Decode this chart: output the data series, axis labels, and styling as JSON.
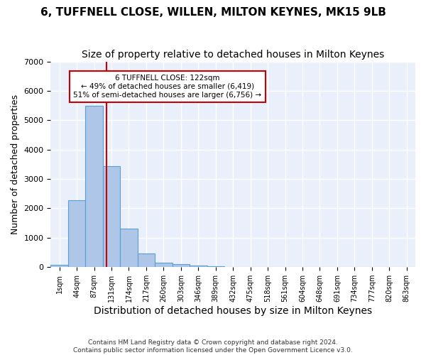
{
  "title": "6, TUFFNELL CLOSE, WILLEN, MILTON KEYNES, MK15 9LB",
  "subtitle": "Size of property relative to detached houses in Milton Keynes",
  "xlabel": "Distribution of detached houses by size in Milton Keynes",
  "ylabel": "Number of detached properties",
  "bin_labels": [
    "1sqm",
    "44sqm",
    "87sqm",
    "131sqm",
    "174sqm",
    "217sqm",
    "260sqm",
    "303sqm",
    "346sqm",
    "389sqm",
    "432sqm",
    "475sqm",
    "518sqm",
    "561sqm",
    "604sqm",
    "648sqm",
    "691sqm",
    "734sqm",
    "777sqm",
    "820sqm",
    "863sqm"
  ],
  "bar_values": [
    80,
    2280,
    5480,
    3440,
    1310,
    460,
    160,
    100,
    60,
    30,
    0,
    0,
    0,
    0,
    0,
    0,
    0,
    0,
    0,
    0,
    0
  ],
  "bar_color": "#aec6e8",
  "bar_edge_color": "#5a9fd4",
  "vline_x": 2.72,
  "vline_color": "#cc0000",
  "annotation_text": "6 TUFFNELL CLOSE: 122sqm\n← 49% of detached houses are smaller (6,419)\n51% of semi-detached houses are larger (6,756) →",
  "annotation_box_color": "#ffffff",
  "annotation_box_edge_color": "#cc0000",
  "ylim": [
    0,
    7000
  ],
  "yticks": [
    0,
    1000,
    2000,
    3000,
    4000,
    5000,
    6000,
    7000
  ],
  "background_color": "#eaf0fb",
  "grid_color": "#ffffff",
  "footer_text": "Contains HM Land Registry data © Crown copyright and database right 2024.\nContains public sector information licensed under the Open Government Licence v3.0.",
  "title_fontsize": 11,
  "subtitle_fontsize": 10,
  "xlabel_fontsize": 10,
  "ylabel_fontsize": 9
}
